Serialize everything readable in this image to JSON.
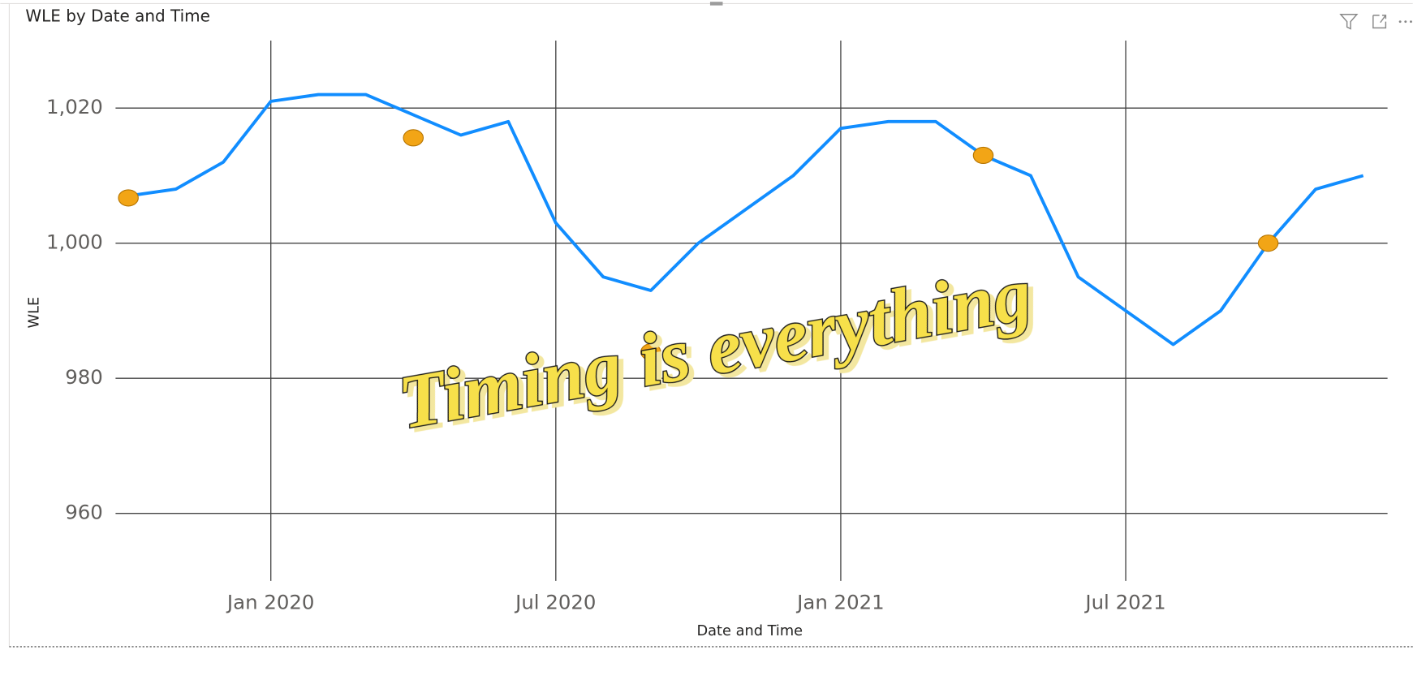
{
  "chart_data": {
    "type": "line",
    "title": "WLE by Date and Time",
    "x_label": "Date and Time",
    "y_label": "WLE",
    "annotation": "Timing is everything",
    "x": [
      "2019-10",
      "2019-11",
      "2019-12",
      "2020-01",
      "2020-02",
      "2020-03",
      "2020-04",
      "2020-05",
      "2020-06",
      "2020-07",
      "2020-08",
      "2020-09",
      "2020-10",
      "2020-11",
      "2020-12",
      "2021-01",
      "2021-02",
      "2021-03",
      "2021-04",
      "2021-05",
      "2021-06",
      "2021-07",
      "2021-08",
      "2021-09",
      "2021-10",
      "2021-11",
      "2021-12"
    ],
    "series": [
      {
        "name": "WLE",
        "color": "#118dff",
        "values": [
          1007,
          1008,
          1012,
          1021,
          1022,
          1022,
          1019,
          1016,
          1018,
          1003,
          995,
          993,
          1000,
          1005,
          1010,
          1017,
          1018,
          1018,
          1013,
          1010,
          995,
          990,
          985,
          990,
          1000,
          1008,
          1010
        ]
      }
    ],
    "markers": {
      "color": "#f2a516",
      "x": [
        "2019-10",
        "2020-04",
        "2020-09",
        "2021-04",
        "2021-10"
      ],
      "values": [
        1006.7,
        1015.6,
        983.9,
        1013,
        1000
      ]
    },
    "xlim": [
      "2019-10",
      "2021-12"
    ],
    "xticks": [
      {
        "value": "2020-01",
        "label": "Jan 2020"
      },
      {
        "value": "2020-07",
        "label": "Jul 2020"
      },
      {
        "value": "2021-01",
        "label": "Jan 2021"
      },
      {
        "value": "2021-07",
        "label": "Jul 2021"
      }
    ],
    "ylim": [
      950,
      1030
    ],
    "yticks": [
      960,
      980,
      {
        "value": 1000,
        "label": "1,000"
      },
      {
        "value": 1020,
        "label": "1,020"
      }
    ],
    "grid": true
  }
}
